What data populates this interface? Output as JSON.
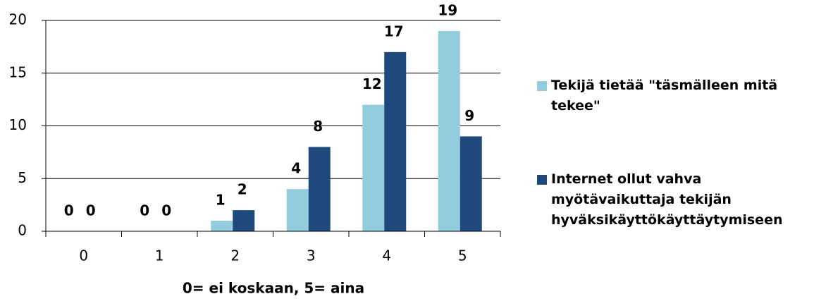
{
  "chart_data": {
    "type": "bar",
    "x_label": "0= ei koskaan, 5= aina",
    "categories": [
      "0",
      "1",
      "2",
      "3",
      "4",
      "5"
    ],
    "series": [
      {
        "name": "Tekijä tietää \"täsmälleen mitä tekee\"",
        "color": "#93cddd",
        "values": [
          0,
          0,
          1,
          4,
          12,
          19
        ]
      },
      {
        "name": "Internet ollut vahva myötävaikuttaja tekijän hyväksikäyttökäyttäytymiseen",
        "color": "#1f497d",
        "values": [
          0,
          0,
          2,
          8,
          17,
          9
        ]
      }
    ],
    "ylim": [
      0,
      20
    ],
    "yticks": [
      0,
      5,
      10,
      15,
      20
    ],
    "grid": true,
    "legend": "right"
  }
}
